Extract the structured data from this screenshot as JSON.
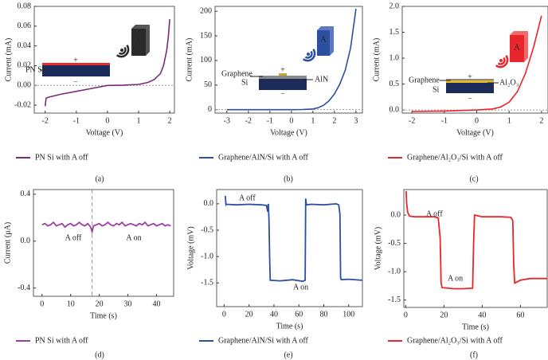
{
  "chart_data": [
    {
      "type": "line",
      "caption": "(a)",
      "xlabel": "Voltage (V)",
      "ylabel": "Current (mA)",
      "xlim": [
        -2.35,
        2.15
      ],
      "ylim": [
        -0.028,
        0.08
      ],
      "xticks": [
        -2,
        -1,
        0,
        1,
        2
      ],
      "yticks": [
        -0.02,
        {
          "value": 0,
          "label": "0.00"
        },
        0.02,
        0.04,
        0.06,
        0.08
      ],
      "hline": 0,
      "annotations": [
        "+",
        "PN Si",
        "−",
        "A"
      ],
      "series": [
        {
          "name": "PN Si with A off",
          "color": "#7b2a7f",
          "x": [
            -2,
            -1.97,
            -1.9,
            -1.5,
            -1,
            -0.5,
            0,
            0.5,
            1,
            1.3,
            1.5,
            1.7,
            1.8,
            1.9,
            1.95,
            2
          ],
          "values": [
            -0.021,
            -0.013,
            -0.012,
            -0.009,
            -0.006,
            -0.003,
            0,
            0.0003,
            0.001,
            0.003,
            0.006,
            0.012,
            0.02,
            0.035,
            0.048,
            0.067
          ]
        }
      ]
    },
    {
      "type": "line",
      "caption": "(b)",
      "xlabel": "Voltage (V)",
      "ylabel": "Current (mA)",
      "xlim": [
        -3.55,
        3.3
      ],
      "ylim": [
        -7,
        210
      ],
      "xticks": [
        -3,
        -2,
        -1,
        0,
        1,
        2,
        3
      ],
      "yticks": [
        0,
        50,
        100,
        150,
        200
      ],
      "hline": 0,
      "annotations": [
        "+",
        "Graphene",
        "AlN",
        "Si",
        "−",
        "A"
      ],
      "series": [
        {
          "name": "Graphene/AlN/Si with A off",
          "color": "#2c4fa0",
          "x": [
            -3,
            -2,
            -1,
            0,
            0.5,
            1,
            1.25,
            1.5,
            1.75,
            2,
            2.25,
            2.5,
            2.75,
            3
          ],
          "values": [
            0,
            0,
            0,
            0,
            0.3,
            1.5,
            4,
            9,
            18,
            32,
            52,
            80,
            125,
            205
          ]
        }
      ]
    },
    {
      "type": "line",
      "caption": "(c)",
      "xlabel": "Voltage (V)",
      "ylabel": "Current (mA)",
      "xlim": [
        -2.3,
        2.2
      ],
      "ylim": [
        -0.06,
        2.0
      ],
      "xticks": [
        -2,
        -1,
        0,
        1,
        2
      ],
      "yticks": [
        {
          "value": 0,
          "label": "0.0"
        },
        0.5,
        {
          "value": 1,
          "label": "1.0"
        },
        1.5,
        {
          "value": 2,
          "label": "2.0"
        }
      ],
      "hline": 0,
      "annotations": [
        "+",
        "Graphene",
        "Al₂O₃",
        "Si",
        "−",
        "A"
      ],
      "series": [
        {
          "name": "Graphene/Al₂O₃/Si with A off",
          "color": "#e8262b",
          "x": [
            -2,
            -1,
            0,
            0.5,
            0.75,
            1,
            1.25,
            1.5,
            1.75,
            2
          ],
          "values": [
            -0.03,
            -0.02,
            0,
            0.02,
            0.06,
            0.15,
            0.35,
            0.7,
            1.2,
            1.82
          ]
        }
      ]
    },
    {
      "type": "line",
      "caption": "(d)",
      "xlabel": "Time (s)",
      "ylabel": "Current (μA)",
      "xlim": [
        -3,
        46
      ],
      "ylim": [
        -0.47,
        0.44
      ],
      "xticks": [
        0,
        10,
        20,
        30,
        40
      ],
      "yticks": [
        -0.4,
        {
          "value": 0,
          "label": "0.0"
        },
        0.4
      ],
      "vline": 17.5,
      "annotations": [
        "A off",
        "A on"
      ],
      "series": [
        {
          "name": "PN Si with A off",
          "color": "#9b3fa6",
          "x": [
            0,
            1,
            2,
            3,
            4,
            5,
            6,
            7,
            8,
            9,
            10,
            11,
            12,
            13,
            14,
            15,
            16,
            17,
            17.5,
            18,
            19,
            20,
            21,
            22,
            23,
            24,
            25,
            26,
            27,
            28,
            29,
            30,
            31,
            32,
            33,
            34,
            35,
            36,
            37,
            38,
            39,
            40,
            41,
            42,
            43,
            44,
            45
          ],
          "values": [
            0.14,
            0.15,
            0.13,
            0.14,
            0.16,
            0.13,
            0.14,
            0.15,
            0.12,
            0.14,
            0.15,
            0.13,
            0.14,
            0.16,
            0.14,
            0.13,
            0.15,
            0.12,
            0.08,
            0.13,
            0.14,
            0.15,
            0.13,
            0.14,
            0.16,
            0.14,
            0.13,
            0.15,
            0.14,
            0.16,
            0.13,
            0.14,
            0.15,
            0.14,
            0.13,
            0.15,
            0.14,
            0.16,
            0.13,
            0.14,
            0.15,
            0.13,
            0.14,
            0.15,
            0.13,
            0.14,
            0.13
          ]
        }
      ]
    },
    {
      "type": "line",
      "caption": "(e)",
      "xlabel": "Time (s)",
      "ylabel": "Voltage (mV)",
      "xlim": [
        -6,
        111
      ],
      "ylim": [
        -1.95,
        0.27
      ],
      "xticks": [
        0,
        20,
        40,
        60,
        80,
        100
      ],
      "yticks": [
        -1.5,
        {
          "value": -1,
          "label": "-1.0"
        },
        -0.5,
        {
          "value": 0,
          "label": "0.0"
        }
      ],
      "annotations": [
        "A off",
        "A on"
      ],
      "series": [
        {
          "name": "Graphene/AlN/Si with A off",
          "color": "#2c4fa0",
          "x": [
            1,
            1.5,
            2,
            10,
            20,
            30,
            34,
            35,
            35.5,
            36,
            36.5,
            37,
            45,
            55,
            63,
            64,
            65,
            65.5,
            66,
            70,
            80,
            90,
            92,
            93,
            93.5,
            94,
            100,
            111
          ],
          "values": [
            0.15,
            -0.02,
            -0.01,
            -0.02,
            -0.01,
            -0.02,
            -0.03,
            -0.15,
            0.0,
            -0.3,
            -1.0,
            -1.45,
            -1.46,
            -1.44,
            -1.47,
            -1.46,
            -1.45,
            0.1,
            -0.02,
            -0.01,
            -0.02,
            0,
            -0.02,
            -0.2,
            -1.4,
            -1.44,
            -1.43,
            -1.45
          ]
        }
      ]
    },
    {
      "type": "line",
      "caption": "(f)",
      "xlabel": "Time (s)",
      "ylabel": "Voltage (mV)",
      "xlim": [
        -1,
        74
      ],
      "ylim": [
        -1.63,
        0.45
      ],
      "xticks": [
        0,
        20,
        40,
        60
      ],
      "yticks": [
        -1.5,
        {
          "value": -1,
          "label": "-1.0"
        },
        -0.5,
        {
          "value": 0,
          "label": "0.0"
        }
      ],
      "annotations": [
        "A off",
        "A on"
      ],
      "series": [
        {
          "name": "Graphene/Al₂O₃/Si with A off",
          "color": "#e8262b",
          "x": [
            0.2,
            0.5,
            1,
            2,
            5,
            10,
            15,
            17,
            18,
            18.5,
            19,
            25,
            30,
            35,
            35.5,
            36,
            40,
            50,
            55,
            56,
            56.5,
            57,
            60,
            65,
            74
          ],
          "values": [
            0.42,
            0.2,
            0.05,
            -0.02,
            -0.03,
            -0.03,
            -0.03,
            -0.05,
            -0.4,
            -1.2,
            -1.28,
            -1.3,
            -1.3,
            -1.29,
            -0.5,
            0,
            -0.03,
            -0.03,
            -0.04,
            -0.1,
            -0.9,
            -1.2,
            -1.15,
            -1.12,
            -1.12
          ]
        }
      ]
    }
  ]
}
